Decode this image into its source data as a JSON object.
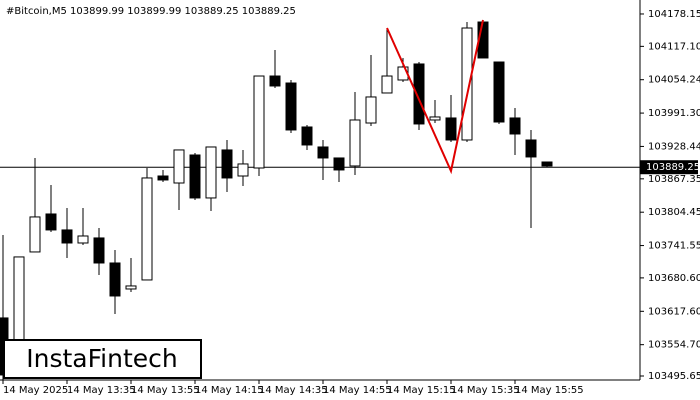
{
  "chart_data": {
    "type": "candlestick",
    "title": "#Bitcoin,M5  103899.99 103899.99 103889.25 103889.25",
    "watermark": "InstaFintech",
    "categories": [
      "14 May 2025",
      null,
      null,
      null,
      "14 May 13:35",
      null,
      null,
      null,
      "14 May 13:55",
      null,
      null,
      null,
      "14 May 14:15",
      null,
      null,
      null,
      "14 May 14:35",
      null,
      null,
      null,
      "14 May 14:55",
      null,
      null,
      null,
      "14 May 15:15",
      null,
      null,
      null,
      "14 May 15:35",
      null,
      null,
      null,
      "14 May 15:55",
      null,
      null
    ],
    "open": [
      103605.1,
      103563.6,
      103729.5,
      103801.1,
      103771.0,
      103746.4,
      103755.9,
      103708.7,
      103659.7,
      103676.7,
      103872.7,
      103859.5,
      103912.3,
      103831.3,
      103921.8,
      103872.7,
      103887.8,
      104061.2,
      104048.0,
      103965.1,
      103927.4,
      103906.7,
      103891.6,
      103972.6,
      104029.2,
      104053.7,
      104083.9,
      103978.3,
      103982.1,
      103940.6,
      104163.0,
      104087.6,
      103982.1,
      103940.6,
      103899.1
    ],
    "high": [
      103761.5,
      103720.1,
      103906.7,
      103855.8,
      103812.4,
      103812.4,
      103774.7,
      103733.3,
      103718.2,
      103887.8,
      103884.1,
      103921.8,
      103916.1,
      103927.4,
      103940.6,
      103921.8,
      104061.2,
      104110.2,
      104053.7,
      103968.9,
      103940.6,
      103906.7,
      104031.1,
      104100.8,
      104149.8,
      104095.2,
      104087.6,
      104016.0,
      104025.4,
      104163.0,
      104163.0,
      104087.6,
      104000.9,
      103959.5,
      103899.1
    ],
    "low": [
      103488.1,
      103554.2,
      103729.5,
      103767.2,
      103718.2,
      103742.7,
      103686.1,
      103612.6,
      103654.1,
      103676.7,
      103861.4,
      103808.7,
      103827.5,
      103806.8,
      103842.6,
      103853.9,
      103872.7,
      104038.6,
      103953.8,
      103921.8,
      103865.2,
      103861.4,
      103874.6,
      103967.0,
      104029.2,
      104049.9,
      103959.5,
      103972.6,
      103936.8,
      103936.8,
      104095.2,
      103970.8,
      103912.3,
      103774.7,
      103889.7
    ],
    "close": [
      103497.6,
      103720.1,
      103795.5,
      103771.0,
      103746.4,
      103759.6,
      103708.7,
      103646.5,
      103665.4,
      103869.0,
      103865.2,
      103921.8,
      103831.3,
      103927.4,
      103869.0,
      103895.4,
      104061.2,
      104042.4,
      103959.5,
      103931.2,
      103906.7,
      103884.1,
      103978.3,
      104021.7,
      104061.2,
      104078.2,
      103970.8,
      103984.0,
      103940.6,
      104151.7,
      104095.2,
      103974.5,
      103951.9,
      103908.6,
      103891.6
    ],
    "last_price": 103889.25,
    "ylim": [
      103488.1,
      104204.5
    ],
    "yticks": [
      104178.15,
      {
        "value": 104117.1,
        "label": "104117.10"
      },
      104054.24,
      {
        "value": 103991.3,
        "label": "103991.30"
      },
      103928.44,
      103867.35,
      103804.45,
      103741.55,
      {
        "value": 103680.6,
        "label": "103680.60"
      },
      {
        "value": 103617.6,
        "label": "103617.60"
      },
      {
        "value": 103554.7,
        "label": "103554.70"
      },
      103495.65
    ],
    "color_up": "#ffffff",
    "color_down": "#000000",
    "line_color": "#000000"
  }
}
